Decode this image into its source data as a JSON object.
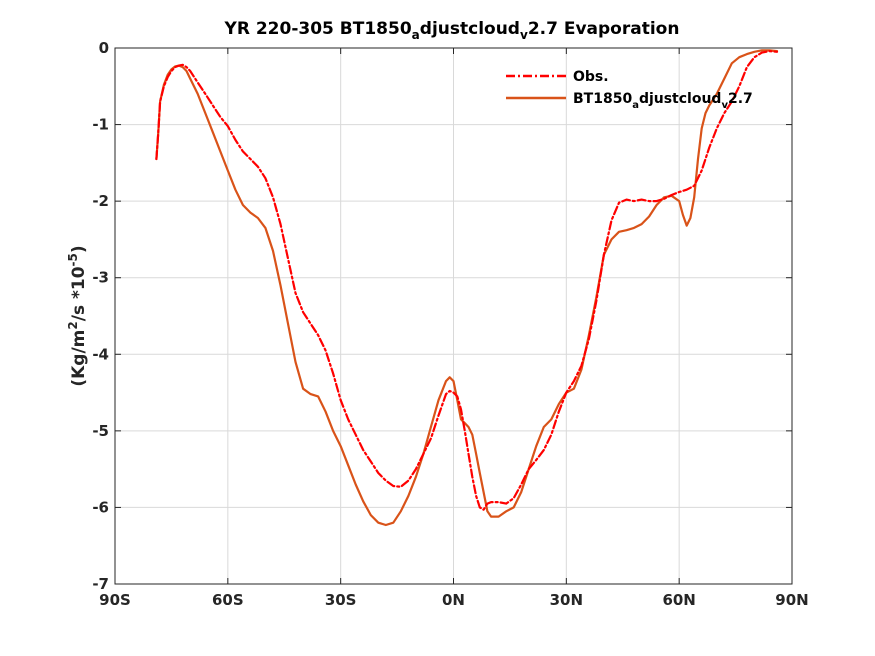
{
  "chart_data": {
    "type": "line",
    "title": "YR 220-305 BT1850adjustcloudv2.7 Evaporation",
    "title_parts": [
      "YR 220-305 BT1850",
      "a",
      "djustcloud",
      "v",
      "2.7 Evaporation"
    ],
    "ylabel": "(Kg/m2/s *10-5)",
    "ylabel_parts": [
      "(Kg/m",
      "2",
      "/s *10",
      "-5",
      ")"
    ],
    "xlim": [
      -90,
      90
    ],
    "ylim": [
      -7,
      0
    ],
    "x_ticks": [
      -90,
      -60,
      -30,
      0,
      30,
      60,
      90
    ],
    "x_tick_labels": [
      "90S",
      "60S",
      "30S",
      "0N",
      "30N",
      "60N",
      "90N"
    ],
    "y_ticks": [
      0,
      -1,
      -2,
      -3,
      -4,
      -5,
      -6,
      -7
    ],
    "y_tick_labels": [
      "0",
      "-1",
      "-2",
      "-3",
      "-4",
      "-5",
      "-6",
      "-7"
    ],
    "grid": true,
    "legend_position": "top-right",
    "series": [
      {
        "name": "Obs.",
        "color": "#ff0000",
        "style": "dash-dot",
        "x": [
          -79,
          -78.5,
          -78,
          -77,
          -76,
          -75,
          -74,
          -73,
          -72,
          -71,
          -70,
          -68,
          -66,
          -64,
          -62,
          -60,
          -58,
          -56,
          -54,
          -52,
          -50,
          -48,
          -46,
          -44,
          -42,
          -40,
          -38,
          -36,
          -34,
          -32,
          -30,
          -28,
          -26,
          -24,
          -22,
          -20,
          -18,
          -16,
          -14,
          -12,
          -10,
          -8,
          -6,
          -4,
          -2,
          -1,
          0,
          1,
          2,
          3,
          4,
          5,
          6,
          7,
          8,
          9,
          10,
          12,
          14,
          16,
          18,
          20,
          22,
          24,
          26,
          28,
          30,
          32,
          34,
          36,
          38,
          40,
          42,
          44,
          46,
          48,
          50,
          52,
          54,
          56,
          58,
          60,
          62,
          64,
          66,
          68,
          70,
          72,
          74,
          76,
          78,
          80,
          82,
          84,
          86
        ],
        "y": [
          -1.45,
          -1.1,
          -0.7,
          -0.5,
          -0.38,
          -0.3,
          -0.25,
          -0.23,
          -0.22,
          -0.25,
          -0.3,
          -0.45,
          -0.6,
          -0.75,
          -0.9,
          -1.02,
          -1.2,
          -1.35,
          -1.45,
          -1.55,
          -1.7,
          -1.95,
          -2.3,
          -2.75,
          -3.2,
          -3.45,
          -3.6,
          -3.75,
          -3.95,
          -4.25,
          -4.6,
          -4.85,
          -5.05,
          -5.25,
          -5.4,
          -5.55,
          -5.65,
          -5.72,
          -5.73,
          -5.65,
          -5.5,
          -5.3,
          -5.1,
          -4.8,
          -4.52,
          -4.48,
          -4.5,
          -4.55,
          -4.72,
          -5.0,
          -5.3,
          -5.6,
          -5.85,
          -6.0,
          -6.03,
          -5.95,
          -5.93,
          -5.93,
          -5.95,
          -5.88,
          -5.7,
          -5.5,
          -5.38,
          -5.25,
          -5.05,
          -4.75,
          -4.5,
          -4.35,
          -4.15,
          -3.8,
          -3.3,
          -2.7,
          -2.25,
          -2.02,
          -1.98,
          -2.0,
          -1.98,
          -2.0,
          -2.0,
          -1.97,
          -1.92,
          -1.88,
          -1.85,
          -1.8,
          -1.6,
          -1.3,
          -1.05,
          -0.85,
          -0.7,
          -0.5,
          -0.25,
          -0.12,
          -0.06,
          -0.04,
          -0.05
        ]
      },
      {
        "name": "BT1850adjustcloudv2.7",
        "name_parts": [
          "BT1850",
          "a",
          "djustcloud",
          "v",
          "2.7"
        ],
        "color": "#d95319",
        "style": "solid",
        "x": [
          -79,
          -78.5,
          -78,
          -77,
          -76,
          -75,
          -74,
          -73,
          -72,
          -71,
          -70,
          -68,
          -66,
          -64,
          -62,
          -60,
          -58,
          -56,
          -54,
          -52,
          -50,
          -48,
          -46,
          -44,
          -42,
          -40,
          -38,
          -36,
          -34,
          -32,
          -30,
          -28,
          -26,
          -24,
          -22,
          -20,
          -18,
          -16,
          -14,
          -12,
          -10,
          -8,
          -6,
          -4,
          -2,
          -1,
          0,
          1,
          2,
          3,
          4,
          5,
          6,
          7,
          8,
          9,
          10,
          12,
          14,
          16,
          18,
          20,
          22,
          24,
          26,
          28,
          30,
          32,
          34,
          36,
          38,
          40,
          42,
          44,
          46,
          48,
          50,
          52,
          54,
          56,
          58,
          60,
          61,
          62,
          63,
          64,
          65,
          66,
          67,
          68,
          70,
          72,
          74,
          76,
          78,
          80,
          82,
          84,
          86
        ],
        "y": [
          -1.45,
          -1.1,
          -0.7,
          -0.48,
          -0.35,
          -0.28,
          -0.24,
          -0.23,
          -0.25,
          -0.3,
          -0.4,
          -0.6,
          -0.85,
          -1.1,
          -1.35,
          -1.6,
          -1.85,
          -2.05,
          -2.15,
          -2.22,
          -2.35,
          -2.65,
          -3.1,
          -3.6,
          -4.1,
          -4.45,
          -4.52,
          -4.55,
          -4.75,
          -5.0,
          -5.2,
          -5.45,
          -5.7,
          -5.92,
          -6.1,
          -6.2,
          -6.23,
          -6.2,
          -6.05,
          -5.85,
          -5.6,
          -5.3,
          -4.95,
          -4.6,
          -4.35,
          -4.3,
          -4.35,
          -4.6,
          -4.85,
          -4.9,
          -4.95,
          -5.05,
          -5.3,
          -5.55,
          -5.8,
          -6.05,
          -6.12,
          -6.12,
          -6.05,
          -6.0,
          -5.8,
          -5.5,
          -5.2,
          -4.95,
          -4.85,
          -4.65,
          -4.5,
          -4.45,
          -4.2,
          -3.75,
          -3.25,
          -2.7,
          -2.5,
          -2.4,
          -2.38,
          -2.35,
          -2.3,
          -2.2,
          -2.05,
          -1.95,
          -1.93,
          -2.0,
          -2.18,
          -2.32,
          -2.22,
          -1.95,
          -1.45,
          -1.05,
          -0.85,
          -0.75,
          -0.6,
          -0.4,
          -0.2,
          -0.12,
          -0.08,
          -0.05,
          -0.03,
          -0.03,
          -0.04
        ]
      }
    ]
  }
}
